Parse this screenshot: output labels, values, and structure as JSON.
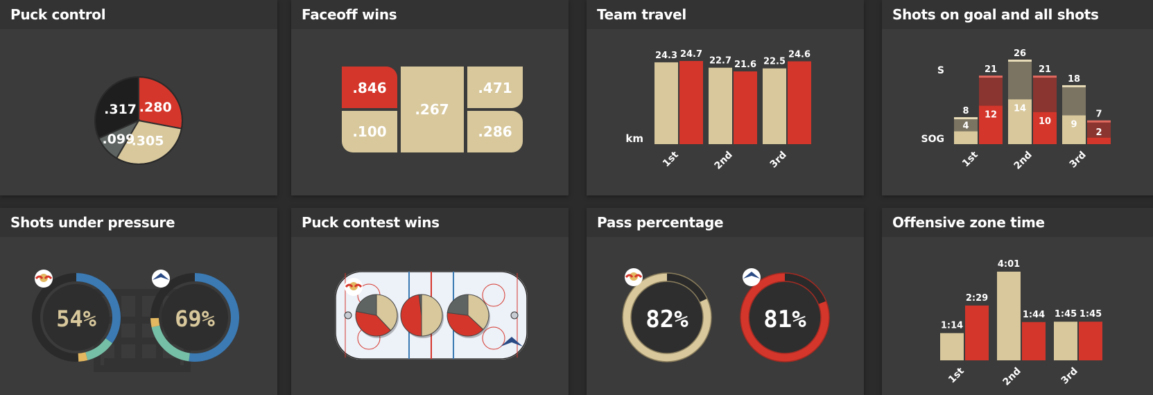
{
  "colors": {
    "red": "#d5362b",
    "tan": "#d8c89c",
    "black": "#1e1e1e",
    "gray": "#5d6462",
    "blue": "#3b7ab3",
    "teal": "#76bfa7",
    "yellow": "#e3b860",
    "darkred": "#8a3530",
    "taupe": "#7b7463"
  },
  "panels": {
    "puck_control": {
      "title": "Puck control"
    },
    "faceoff": {
      "title": "Faceoff wins"
    },
    "travel": {
      "title": "Team travel"
    },
    "shots": {
      "title": "Shots on goal and all shots"
    },
    "pressure": {
      "title": "Shots under pressure"
    },
    "contest": {
      "title": "Puck contest wins"
    },
    "pass": {
      "title": "Pass percentage"
    },
    "ozone": {
      "title": "Offensive zone time"
    }
  },
  "chart_data": [
    {
      "type": "pie",
      "title": "Puck control",
      "labels": [
        ".280",
        ".305",
        ".099",
        ".317"
      ],
      "values": [
        0.28,
        0.305,
        0.099,
        0.317
      ],
      "colors": [
        "red",
        "tan",
        "gray",
        "black"
      ]
    },
    {
      "type": "table",
      "title": "Faceoff wins",
      "cells": [
        ".846",
        ".267",
        ".471",
        ".100",
        ".286"
      ]
    },
    {
      "type": "bar",
      "title": "Team travel",
      "ylabel": "km",
      "categories": [
        "1st",
        "2nd",
        "3rd"
      ],
      "series": [
        {
          "values": [
            24.3,
            22.7,
            22.5
          ]
        },
        {
          "values": [
            24.7,
            21.6,
            24.6
          ]
        }
      ]
    },
    {
      "type": "bar",
      "title": "Shots on goal and all shots",
      "ylabel_top": "S",
      "ylabel_bottom": "SOG",
      "categories": [
        "1st",
        "2nd",
        "3rd"
      ],
      "series": [
        {
          "shots": [
            8,
            26,
            18
          ],
          "sog": [
            4,
            14,
            9
          ]
        },
        {
          "shots": [
            21,
            21,
            7
          ],
          "sog": [
            12,
            10,
            2
          ]
        }
      ]
    },
    {
      "type": "pie",
      "title": "Shots under pressure",
      "values": [
        "54%",
        "69%"
      ]
    },
    {
      "type": "pie",
      "title": "Puck contest wins",
      "values": []
    },
    {
      "type": "pie",
      "title": "Pass percentage",
      "values": [
        "82%",
        "81%"
      ],
      "fractions": [
        0.82,
        0.81
      ]
    },
    {
      "type": "bar",
      "title": "Offensive zone time",
      "categories": [
        "1st",
        "2nd",
        "3rd"
      ],
      "series": [
        {
          "values": [
            "1:14",
            "4:01",
            "1:45"
          ],
          "seconds": [
            74,
            241,
            105
          ]
        },
        {
          "values": [
            "2:29",
            "1:44",
            "1:45"
          ],
          "seconds": [
            149,
            104,
            105
          ]
        }
      ]
    }
  ]
}
